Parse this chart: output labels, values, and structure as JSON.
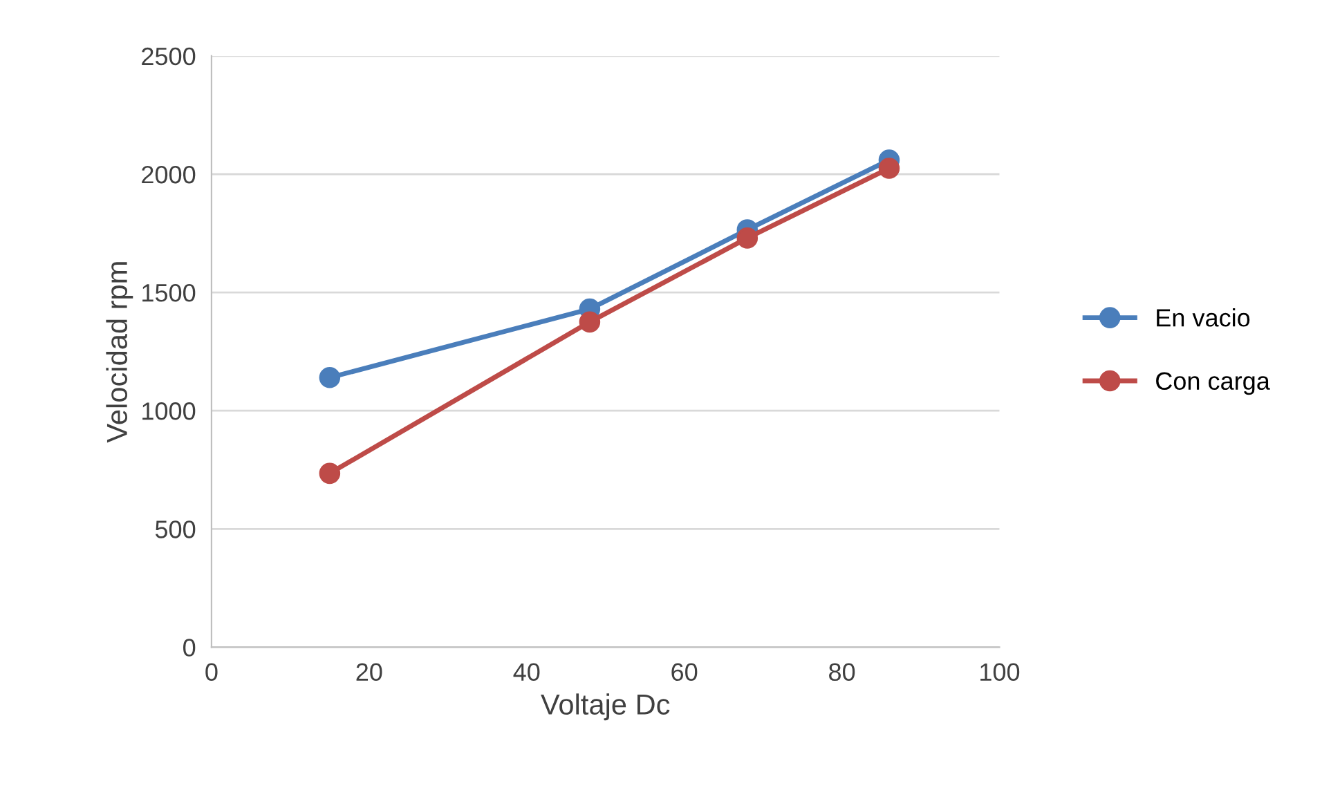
{
  "chart_data": {
    "type": "line",
    "xlabel": "Voltaje Dc",
    "ylabel": "Velocidad rpm",
    "xlim": [
      0,
      100
    ],
    "xticks": [
      0,
      20,
      40,
      60,
      80,
      100
    ],
    "ylim": [
      0,
      2500
    ],
    "yticks": [
      0,
      500,
      1000,
      1500,
      2000,
      2500
    ],
    "grid": "y",
    "legend": "right",
    "marker": "circle",
    "line_style": "solid",
    "series": [
      {
        "name": "En vacio",
        "color": "#4a7ebb",
        "x": [
          15,
          48,
          68,
          86
        ],
        "values": [
          1140,
          1430,
          1765,
          2060
        ]
      },
      {
        "name": "Con carga",
        "color": "#be4b48",
        "x": [
          15,
          48,
          68,
          86
        ],
        "values": [
          735,
          1375,
          1730,
          2025
        ]
      }
    ]
  }
}
